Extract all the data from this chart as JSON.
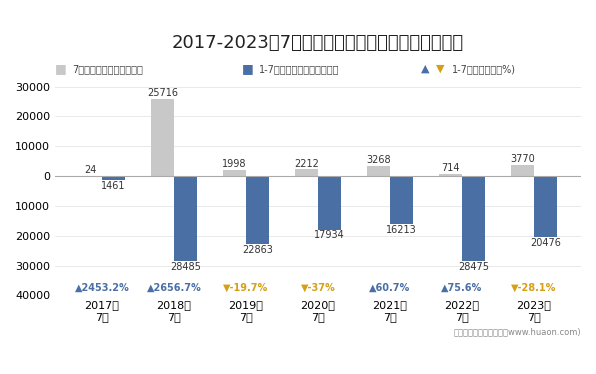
{
  "title": "2017-2023年7月成都空港保税物流中心进出口总额",
  "years": [
    "2017年\n7月",
    "2018年\n7月",
    "2019年\n7月",
    "2020年\n7月",
    "2021年\n7月",
    "2022年\n7月",
    "2023年\n7月"
  ],
  "gray_values": [
    24,
    25716,
    1998,
    2212,
    3268,
    714,
    3770
  ],
  "blue_values": [
    -1461,
    -28485,
    -22863,
    -17934,
    -16213,
    -28475,
    -20476
  ],
  "growth_rates": [
    2453.2,
    2656.7,
    -19.7,
    -37.0,
    60.7,
    75.6,
    -28.1
  ],
  "growth_labels": [
    "▲2453.2%",
    "▲2656.7%",
    "▼-19.7%",
    "▼-37%",
    "▲60.7%",
    "▲75.6%",
    "▼-28.1%"
  ],
  "growth_colors": [
    "#4a6fa5",
    "#4a6fa5",
    "#d4a017",
    "#d4a017",
    "#4a6fa5",
    "#4a6fa5",
    "#d4a017"
  ],
  "gray_bar_color": "#c8c8c8",
  "blue_bar_color": "#4a6fa5",
  "ylim": [
    -40000,
    30000
  ],
  "yticks": [
    -40000,
    -30000,
    -20000,
    -10000,
    0,
    10000,
    20000,
    30000
  ],
  "legend_labels": [
    "7月进出口总额（万美元）",
    "1-7月进出口总额（万美元）",
    "1-7月同比增速（%)"
  ],
  "triangle_up_color": "#4a6fa5",
  "triangle_down_color": "#d4a017",
  "footnote": "制图：华经产业研究院（www.huaon.com)",
  "background_color": "#ffffff",
  "title_fontsize": 13,
  "label_fontsize": 8.5
}
